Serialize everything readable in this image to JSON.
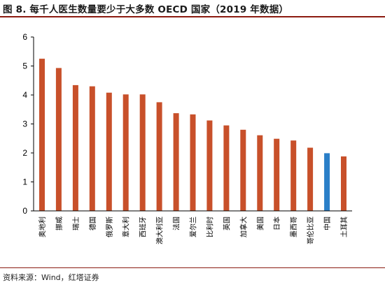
{
  "title": "图 8. 每千人医生数量要少于大多数 OECD 国家（2019 年数据）",
  "source": "资料来源：Wind，红塔证券",
  "colors": {
    "bar": "#c8502a",
    "highlight": "#2a7fc8",
    "accent": "#8b1a10"
  },
  "chart_data": {
    "type": "bar",
    "categories": [
      "奥地利",
      "挪威",
      "瑞士",
      "德国",
      "俄罗斯",
      "意大利",
      "西班牙",
      "澳大利亚",
      "法国",
      "爱尔兰",
      "比利时",
      "英国",
      "加拿大",
      "美国",
      "日本",
      "墨西哥",
      "哥伦比亚",
      "中国",
      "土耳其"
    ],
    "values": [
      5.25,
      4.93,
      4.34,
      4.3,
      4.08,
      4.02,
      4.02,
      3.75,
      3.37,
      3.33,
      3.12,
      2.95,
      2.8,
      2.61,
      2.49,
      2.43,
      2.18,
      1.99,
      1.88
    ],
    "highlight_category": "中国",
    "ylim": [
      0,
      6
    ],
    "yticks": [
      "0",
      "1",
      "2",
      "3",
      "4",
      "5",
      "6"
    ],
    "title": "",
    "xlabel": "",
    "ylabel": "",
    "grid": false
  }
}
